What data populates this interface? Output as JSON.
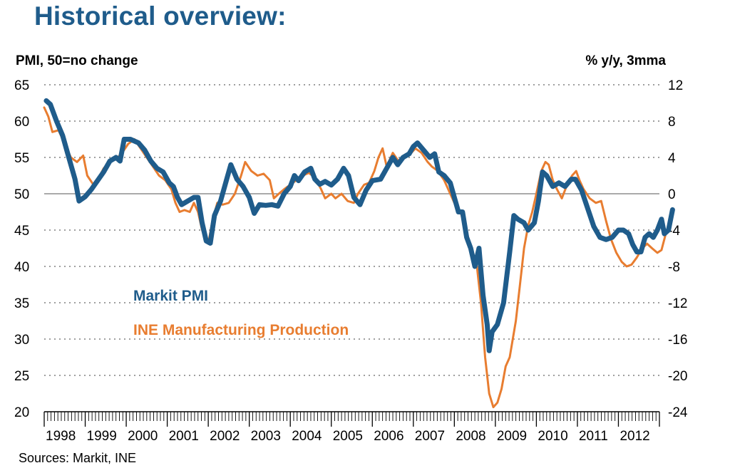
{
  "page": {
    "title": "Historical overview:",
    "source": "Sources: Markit, INE"
  },
  "chart_data": {
    "type": "line",
    "left_axis": {
      "title": "PMI, 50=no change",
      "min": 20,
      "max": 65,
      "ticks": [
        20,
        25,
        30,
        35,
        40,
        45,
        50,
        55,
        60,
        65
      ]
    },
    "right_axis": {
      "title": "% y/y, 3mma",
      "min": -24,
      "max": 12,
      "ticks": [
        -24,
        -20,
        -16,
        -12,
        -8,
        -4,
        0,
        4,
        8,
        12
      ]
    },
    "x_axis": {
      "start": 1998.0,
      "end": 2013.0,
      "labels": [
        "1998",
        "1999",
        "2000",
        "2001",
        "2002",
        "2003",
        "2004",
        "2005",
        "2006",
        "2007",
        "2008",
        "2009",
        "2010",
        "2011",
        "2012"
      ]
    },
    "reference_line": 50,
    "grid": "horizontal dotted",
    "legend": "center-left",
    "colors": {
      "pmi": "#1f5c8b",
      "ine": "#e87d30"
    },
    "series": [
      {
        "name": "Markit PMI",
        "axis": "left",
        "points": [
          [
            1998.05,
            62.8
          ],
          [
            1998.15,
            62.3
          ],
          [
            1998.3,
            60.0
          ],
          [
            1998.45,
            58.0
          ],
          [
            1998.6,
            55.0
          ],
          [
            1998.75,
            52.0
          ],
          [
            1998.85,
            49.0
          ],
          [
            1999.0,
            49.6
          ],
          [
            1999.15,
            50.6
          ],
          [
            1999.3,
            51.8
          ],
          [
            1999.45,
            53.0
          ],
          [
            1999.6,
            54.5
          ],
          [
            1999.75,
            55.0
          ],
          [
            1999.85,
            54.5
          ],
          [
            1999.95,
            57.5
          ],
          [
            2000.1,
            57.5
          ],
          [
            2000.3,
            57.0
          ],
          [
            2000.45,
            56.0
          ],
          [
            2000.6,
            54.5
          ],
          [
            2000.75,
            53.5
          ],
          [
            2000.9,
            53.0
          ],
          [
            2001.05,
            51.5
          ],
          [
            2001.15,
            51.0
          ],
          [
            2001.25,
            49.5
          ],
          [
            2001.35,
            48.5
          ],
          [
            2001.5,
            49.0
          ],
          [
            2001.65,
            49.5
          ],
          [
            2001.75,
            49.5
          ],
          [
            2001.85,
            46.0
          ],
          [
            2001.95,
            43.5
          ],
          [
            2002.05,
            43.2
          ],
          [
            2002.15,
            47.0
          ],
          [
            2002.3,
            49.0
          ],
          [
            2002.45,
            52.0
          ],
          [
            2002.55,
            54.0
          ],
          [
            2002.7,
            52.0
          ],
          [
            2002.85,
            51.0
          ],
          [
            2003.0,
            49.5
          ],
          [
            2003.12,
            47.3
          ],
          [
            2003.25,
            48.5
          ],
          [
            2003.4,
            48.4
          ],
          [
            2003.55,
            48.5
          ],
          [
            2003.7,
            48.3
          ],
          [
            2003.85,
            50.0
          ],
          [
            2004.0,
            51.0
          ],
          [
            2004.1,
            52.5
          ],
          [
            2004.2,
            51.8
          ],
          [
            2004.35,
            53.0
          ],
          [
            2004.5,
            53.5
          ],
          [
            2004.6,
            52.0
          ],
          [
            2004.72,
            51.3
          ],
          [
            2004.85,
            51.7
          ],
          [
            2005.0,
            51.2
          ],
          [
            2005.15,
            52.0
          ],
          [
            2005.3,
            53.5
          ],
          [
            2005.42,
            52.5
          ],
          [
            2005.55,
            49.5
          ],
          [
            2005.7,
            48.5
          ],
          [
            2005.85,
            50.5
          ],
          [
            2006.0,
            51.8
          ],
          [
            2006.2,
            52.0
          ],
          [
            2006.35,
            53.5
          ],
          [
            2006.5,
            55.0
          ],
          [
            2006.62,
            54.0
          ],
          [
            2006.75,
            55.0
          ],
          [
            2006.9,
            55.5
          ],
          [
            2007.0,
            56.5
          ],
          [
            2007.1,
            57.0
          ],
          [
            2007.25,
            56.0
          ],
          [
            2007.4,
            55.0
          ],
          [
            2007.52,
            55.5
          ],
          [
            2007.62,
            53.0
          ],
          [
            2007.75,
            52.5
          ],
          [
            2007.9,
            51.5
          ],
          [
            2008.0,
            49.5
          ],
          [
            2008.1,
            47.5
          ],
          [
            2008.2,
            47.5
          ],
          [
            2008.3,
            44.0
          ],
          [
            2008.4,
            42.5
          ],
          [
            2008.5,
            40.0
          ],
          [
            2008.6,
            42.5
          ],
          [
            2008.7,
            36.0
          ],
          [
            2008.8,
            32.0
          ],
          [
            2008.85,
            28.4
          ],
          [
            2008.92,
            31.0
          ],
          [
            2009.05,
            32.0
          ],
          [
            2009.2,
            35.0
          ],
          [
            2009.35,
            42.0
          ],
          [
            2009.45,
            47.0
          ],
          [
            2009.55,
            46.5
          ],
          [
            2009.7,
            46.0
          ],
          [
            2009.8,
            45.0
          ],
          [
            2009.95,
            46.0
          ],
          [
            2010.05,
            49.0
          ],
          [
            2010.15,
            53.0
          ],
          [
            2010.25,
            52.5
          ],
          [
            2010.4,
            51.0
          ],
          [
            2010.55,
            51.5
          ],
          [
            2010.7,
            51.0
          ],
          [
            2010.85,
            52.0
          ],
          [
            2010.95,
            52.0
          ],
          [
            2011.1,
            50.5
          ],
          [
            2011.25,
            48.0
          ],
          [
            2011.4,
            45.5
          ],
          [
            2011.55,
            44.0
          ],
          [
            2011.7,
            43.7
          ],
          [
            2011.85,
            44.0
          ],
          [
            2012.0,
            45.0
          ],
          [
            2012.12,
            45.0
          ],
          [
            2012.25,
            44.5
          ],
          [
            2012.35,
            43.0
          ],
          [
            2012.45,
            42.0
          ],
          [
            2012.55,
            42.0
          ],
          [
            2012.65,
            44.0
          ],
          [
            2012.75,
            44.5
          ],
          [
            2012.85,
            44.0
          ],
          [
            2012.95,
            45.0
          ],
          [
            2013.05,
            46.5
          ],
          [
            2013.12,
            44.5
          ],
          [
            2013.22,
            45.0
          ],
          [
            2013.32,
            47.8
          ]
        ]
      },
      {
        "name": "INE Manufacturing Production",
        "axis": "right",
        "points": [
          [
            1998.0,
            9.5
          ],
          [
            1998.1,
            8.5
          ],
          [
            1998.2,
            6.8
          ],
          [
            1998.35,
            7.0
          ],
          [
            1998.5,
            5.5
          ],
          [
            1998.65,
            4.0
          ],
          [
            1998.8,
            3.5
          ],
          [
            1998.95,
            4.2
          ],
          [
            1999.05,
            2.0
          ],
          [
            1999.2,
            1.0
          ],
          [
            1999.3,
            1.5
          ],
          [
            1999.45,
            2.8
          ],
          [
            1999.6,
            3.5
          ],
          [
            1999.75,
            3.8
          ],
          [
            1999.9,
            4.5
          ],
          [
            2000.05,
            5.5
          ],
          [
            2000.2,
            6.0
          ],
          [
            2000.35,
            5.0
          ],
          [
            2000.5,
            4.0
          ],
          [
            2000.65,
            3.0
          ],
          [
            2000.8,
            2.0
          ],
          [
            2000.95,
            1.5
          ],
          [
            2001.1,
            0.5
          ],
          [
            2001.2,
            -1.0
          ],
          [
            2001.3,
            -2.0
          ],
          [
            2001.42,
            -1.8
          ],
          [
            2001.55,
            -2.0
          ],
          [
            2001.65,
            -1.0
          ],
          [
            2001.75,
            -2.0
          ],
          [
            2001.85,
            -4.0
          ],
          [
            2002.0,
            -5.5
          ],
          [
            2002.1,
            -3.0
          ],
          [
            2002.22,
            -1.0
          ],
          [
            2002.35,
            -1.2
          ],
          [
            2002.5,
            -1.0
          ],
          [
            2002.65,
            0.0
          ],
          [
            2002.8,
            2.0
          ],
          [
            2002.9,
            3.5
          ],
          [
            2003.05,
            2.5
          ],
          [
            2003.2,
            2.0
          ],
          [
            2003.35,
            2.2
          ],
          [
            2003.5,
            1.5
          ],
          [
            2003.6,
            -0.5
          ],
          [
            2003.72,
            0.0
          ],
          [
            2003.85,
            0.5
          ],
          [
            2004.0,
            1.0
          ],
          [
            2004.15,
            1.5
          ],
          [
            2004.3,
            2.0
          ],
          [
            2004.45,
            2.3
          ],
          [
            2004.6,
            1.8
          ],
          [
            2004.75,
            0.5
          ],
          [
            2004.85,
            -0.5
          ],
          [
            2005.0,
            0.0
          ],
          [
            2005.1,
            -0.5
          ],
          [
            2005.25,
            0.0
          ],
          [
            2005.4,
            -0.8
          ],
          [
            2005.55,
            -1.0
          ],
          [
            2005.65,
            0.0
          ],
          [
            2005.8,
            1.0
          ],
          [
            2005.92,
            1.2
          ],
          [
            2006.05,
            2.5
          ],
          [
            2006.15,
            4.0
          ],
          [
            2006.25,
            5.0
          ],
          [
            2006.35,
            3.0
          ],
          [
            2006.5,
            4.5
          ],
          [
            2006.65,
            3.5
          ],
          [
            2006.8,
            4.0
          ],
          [
            2006.95,
            4.5
          ],
          [
            2007.05,
            5.0
          ],
          [
            2007.2,
            4.5
          ],
          [
            2007.35,
            3.5
          ],
          [
            2007.45,
            3.0
          ],
          [
            2007.6,
            2.5
          ],
          [
            2007.75,
            1.5
          ],
          [
            2007.9,
            0.0
          ],
          [
            2008.05,
            -1.5
          ],
          [
            2008.15,
            -2.0
          ],
          [
            2008.25,
            -3.5
          ],
          [
            2008.35,
            -5.0
          ],
          [
            2008.45,
            -6.5
          ],
          [
            2008.55,
            -8.0
          ],
          [
            2008.65,
            -12.0
          ],
          [
            2008.75,
            -18.0
          ],
          [
            2008.85,
            -22.0
          ],
          [
            2008.95,
            -23.5
          ],
          [
            2009.05,
            -23.0
          ],
          [
            2009.15,
            -21.5
          ],
          [
            2009.25,
            -19.0
          ],
          [
            2009.35,
            -18.0
          ],
          [
            2009.5,
            -14.0
          ],
          [
            2009.6,
            -10.0
          ],
          [
            2009.7,
            -6.0
          ],
          [
            2009.8,
            -3.5
          ],
          [
            2009.9,
            -2.0
          ],
          [
            2010.0,
            0.0
          ],
          [
            2010.12,
            2.5
          ],
          [
            2010.22,
            3.5
          ],
          [
            2010.3,
            3.2
          ],
          [
            2010.4,
            1.5
          ],
          [
            2010.5,
            0.5
          ],
          [
            2010.62,
            -0.5
          ],
          [
            2010.75,
            1.0
          ],
          [
            2010.87,
            2.0
          ],
          [
            2010.97,
            2.5
          ],
          [
            2011.05,
            1.5
          ],
          [
            2011.15,
            0.5
          ],
          [
            2011.3,
            -0.5
          ],
          [
            2011.45,
            -1.0
          ],
          [
            2011.58,
            -0.8
          ],
          [
            2011.7,
            -3.0
          ],
          [
            2011.82,
            -5.0
          ],
          [
            2011.95,
            -6.5
          ],
          [
            2012.08,
            -7.5
          ],
          [
            2012.2,
            -8.0
          ],
          [
            2012.32,
            -7.8
          ],
          [
            2012.45,
            -7.0
          ],
          [
            2012.58,
            -6.0
          ],
          [
            2012.7,
            -5.5
          ],
          [
            2012.82,
            -6.0
          ],
          [
            2012.95,
            -6.5
          ],
          [
            2013.05,
            -6.2
          ],
          [
            2013.15,
            -4.5
          ]
        ]
      }
    ]
  }
}
